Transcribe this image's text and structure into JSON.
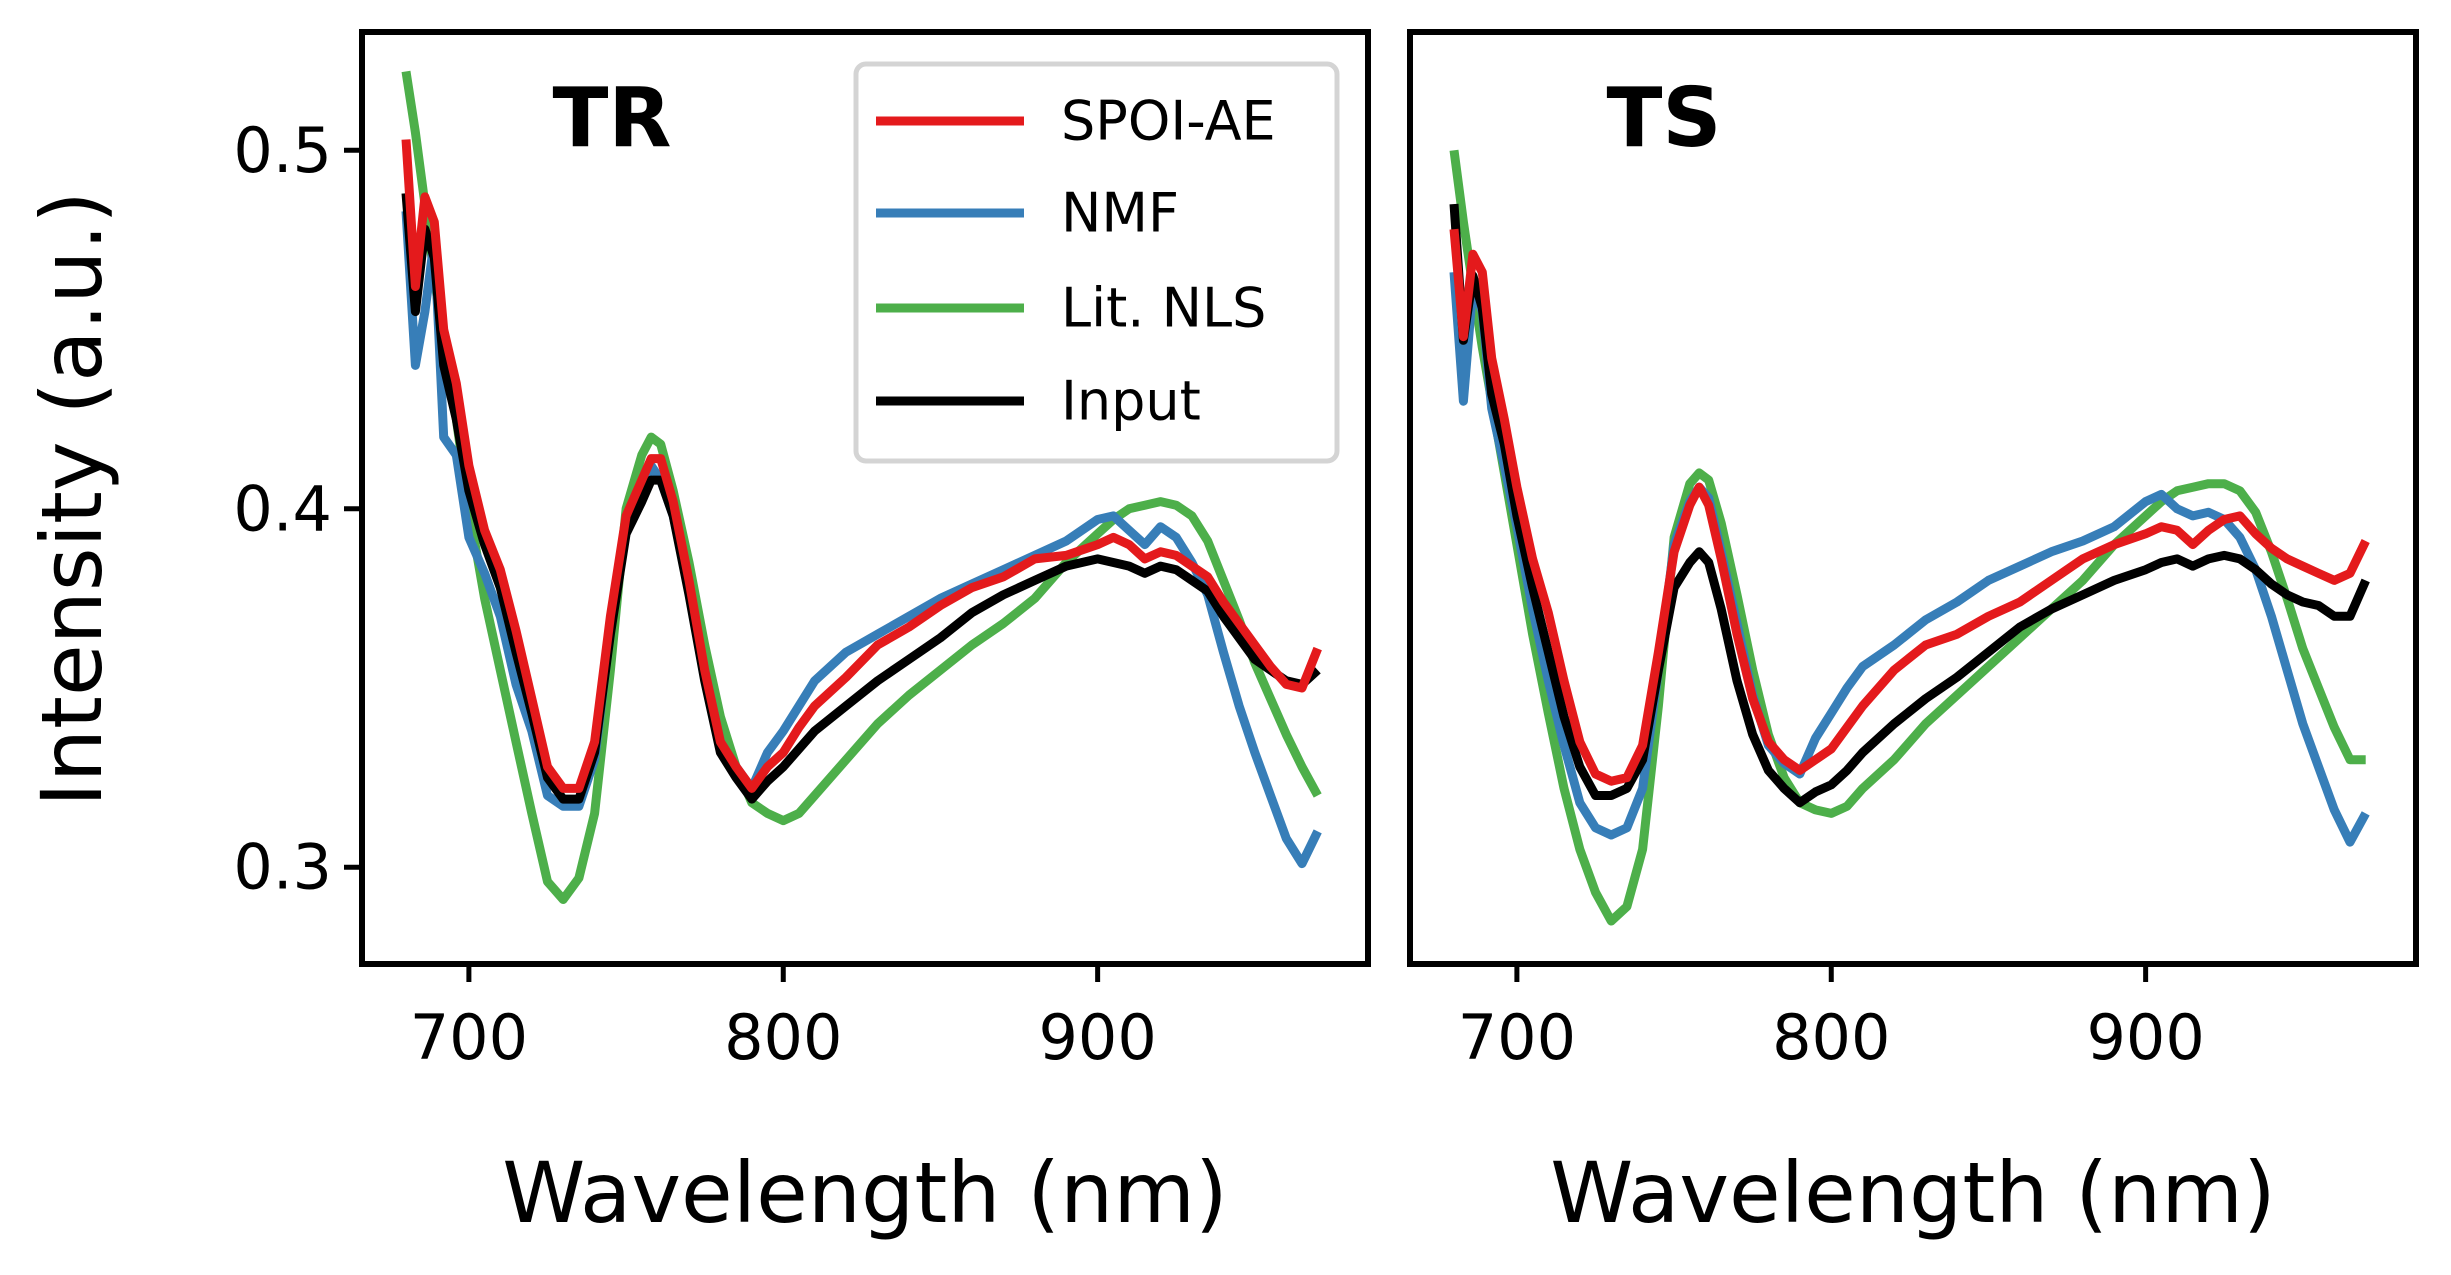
{
  "colors": {
    "SPOI-AE": "#e41a1c",
    "NMF": "#377eb8",
    "Lit. NLS": "#4daf4a",
    "Input": "#000000"
  },
  "ylabel": "Intensity (a.u.)",
  "legend_position": "top-right of TR panel",
  "chart_data": [
    {
      "type": "line",
      "title": "TR",
      "xlabel": "Wavelength (nm)",
      "ylabel": "Intensity (a.u.)",
      "xlim": [
        666,
        986
      ],
      "ylim": [
        0.273,
        0.533
      ],
      "xticks": [
        700,
        800,
        900
      ],
      "yticks": [
        0.3,
        0.4,
        0.5
      ],
      "x": [
        680,
        683,
        686,
        689,
        692,
        696,
        700,
        705,
        710,
        715,
        720,
        725,
        730,
        735,
        740,
        745,
        750,
        755,
        758,
        761,
        765,
        770,
        775,
        780,
        785,
        790,
        795,
        800,
        805,
        810,
        820,
        830,
        840,
        850,
        860,
        870,
        880,
        890,
        900,
        905,
        910,
        915,
        920,
        925,
        930,
        935,
        940,
        945,
        950,
        955,
        960,
        965,
        970
      ],
      "series": [
        {
          "name": "SPOI-AE",
          "values": [
            0.503,
            0.462,
            0.487,
            0.48,
            0.45,
            0.435,
            0.412,
            0.394,
            0.383,
            0.366,
            0.347,
            0.328,
            0.322,
            0.322,
            0.335,
            0.37,
            0.398,
            0.408,
            0.414,
            0.414,
            0.402,
            0.38,
            0.355,
            0.335,
            0.328,
            0.322,
            0.328,
            0.332,
            0.339,
            0.345,
            0.353,
            0.362,
            0.367,
            0.373,
            0.378,
            0.381,
            0.386,
            0.387,
            0.39,
            0.392,
            0.39,
            0.386,
            0.388,
            0.387,
            0.384,
            0.381,
            0.374,
            0.368,
            0.362,
            0.356,
            0.351,
            0.35,
            0.361
          ]
        },
        {
          "name": "NMF",
          "values": [
            0.483,
            0.44,
            0.455,
            0.475,
            0.42,
            0.415,
            0.392,
            0.382,
            0.37,
            0.351,
            0.338,
            0.32,
            0.317,
            0.317,
            0.33,
            0.366,
            0.395,
            0.405,
            0.412,
            0.408,
            0.398,
            0.378,
            0.355,
            0.335,
            0.328,
            0.322,
            0.332,
            0.338,
            0.345,
            0.352,
            0.36,
            0.365,
            0.37,
            0.375,
            0.379,
            0.383,
            0.387,
            0.391,
            0.397,
            0.398,
            0.394,
            0.39,
            0.395,
            0.392,
            0.385,
            0.376,
            0.36,
            0.345,
            0.332,
            0.32,
            0.308,
            0.301,
            0.31
          ]
        },
        {
          "name": "Lit. NLS",
          "values": [
            0.522,
            0.505,
            0.485,
            0.465,
            0.445,
            0.425,
            0.4,
            0.375,
            0.355,
            0.335,
            0.315,
            0.296,
            0.291,
            0.297,
            0.315,
            0.355,
            0.4,
            0.415,
            0.42,
            0.418,
            0.405,
            0.385,
            0.362,
            0.342,
            0.328,
            0.318,
            0.315,
            0.313,
            0.315,
            0.32,
            0.33,
            0.34,
            0.348,
            0.355,
            0.362,
            0.368,
            0.375,
            0.385,
            0.393,
            0.397,
            0.4,
            0.401,
            0.402,
            0.401,
            0.398,
            0.391,
            0.38,
            0.369,
            0.357,
            0.347,
            0.337,
            0.328,
            0.32
          ]
        },
        {
          "name": "Input",
          "values": [
            0.488,
            0.455,
            0.478,
            0.47,
            0.44,
            0.425,
            0.405,
            0.39,
            0.378,
            0.36,
            0.343,
            0.325,
            0.319,
            0.319,
            0.332,
            0.365,
            0.393,
            0.402,
            0.408,
            0.408,
            0.398,
            0.376,
            0.352,
            0.332,
            0.325,
            0.319,
            0.324,
            0.328,
            0.333,
            0.338,
            0.345,
            0.352,
            0.358,
            0.364,
            0.371,
            0.376,
            0.38,
            0.384,
            0.386,
            0.385,
            0.384,
            0.382,
            0.384,
            0.383,
            0.38,
            0.377,
            0.37,
            0.364,
            0.358,
            0.355,
            0.352,
            0.351,
            0.355
          ]
        }
      ]
    },
    {
      "type": "line",
      "title": "TS",
      "xlabel": "Wavelength (nm)",
      "xlim": [
        666,
        986
      ],
      "ylim": [
        0.273,
        0.533
      ],
      "xticks": [
        700,
        800,
        900
      ],
      "yticks": [
        0.3,
        0.4,
        0.5
      ],
      "x": [
        680,
        683,
        686,
        689,
        692,
        696,
        700,
        705,
        710,
        715,
        720,
        725,
        730,
        735,
        740,
        745,
        750,
        755,
        758,
        761,
        765,
        770,
        775,
        780,
        785,
        790,
        795,
        800,
        805,
        810,
        820,
        830,
        840,
        850,
        860,
        870,
        880,
        890,
        900,
        905,
        910,
        915,
        920,
        925,
        930,
        935,
        940,
        945,
        950,
        955,
        960,
        965,
        970
      ],
      "series": [
        {
          "name": "SPOI-AE",
          "values": [
            0.478,
            0.448,
            0.471,
            0.466,
            0.442,
            0.425,
            0.406,
            0.386,
            0.371,
            0.352,
            0.335,
            0.326,
            0.324,
            0.325,
            0.334,
            0.36,
            0.388,
            0.401,
            0.406,
            0.401,
            0.386,
            0.365,
            0.347,
            0.335,
            0.33,
            0.327,
            0.33,
            0.333,
            0.339,
            0.345,
            0.355,
            0.362,
            0.365,
            0.37,
            0.374,
            0.38,
            0.386,
            0.39,
            0.393,
            0.395,
            0.394,
            0.39,
            0.394,
            0.397,
            0.398,
            0.393,
            0.389,
            0.386,
            0.384,
            0.382,
            0.38,
            0.382,
            0.391
          ]
        },
        {
          "name": "NMF",
          "values": [
            0.466,
            0.43,
            0.462,
            0.455,
            0.428,
            0.412,
            0.395,
            0.372,
            0.352,
            0.334,
            0.318,
            0.311,
            0.309,
            0.311,
            0.322,
            0.355,
            0.39,
            0.402,
            0.406,
            0.403,
            0.388,
            0.368,
            0.348,
            0.334,
            0.329,
            0.326,
            0.336,
            0.343,
            0.35,
            0.356,
            0.362,
            0.369,
            0.374,
            0.38,
            0.384,
            0.388,
            0.391,
            0.395,
            0.402,
            0.404,
            0.4,
            0.398,
            0.399,
            0.397,
            0.392,
            0.383,
            0.37,
            0.355,
            0.34,
            0.328,
            0.316,
            0.307,
            0.315
          ]
        },
        {
          "name": "Lit. NLS",
          "values": [
            0.5,
            0.48,
            0.462,
            0.445,
            0.43,
            0.41,
            0.39,
            0.365,
            0.343,
            0.322,
            0.305,
            0.293,
            0.285,
            0.289,
            0.305,
            0.345,
            0.392,
            0.407,
            0.41,
            0.408,
            0.396,
            0.376,
            0.355,
            0.337,
            0.325,
            0.318,
            0.316,
            0.315,
            0.317,
            0.322,
            0.33,
            0.34,
            0.348,
            0.356,
            0.364,
            0.372,
            0.38,
            0.39,
            0.398,
            0.402,
            0.405,
            0.406,
            0.407,
            0.407,
            0.405,
            0.399,
            0.388,
            0.375,
            0.361,
            0.35,
            0.339,
            0.33,
            0.33
          ]
        },
        {
          "name": "Input",
          "values": [
            0.485,
            0.447,
            0.465,
            0.456,
            0.432,
            0.418,
            0.398,
            0.378,
            0.36,
            0.342,
            0.328,
            0.32,
            0.32,
            0.322,
            0.33,
            0.355,
            0.378,
            0.385,
            0.388,
            0.385,
            0.372,
            0.352,
            0.337,
            0.327,
            0.322,
            0.318,
            0.321,
            0.323,
            0.327,
            0.332,
            0.34,
            0.347,
            0.353,
            0.36,
            0.367,
            0.372,
            0.376,
            0.38,
            0.383,
            0.385,
            0.386,
            0.384,
            0.386,
            0.387,
            0.386,
            0.383,
            0.379,
            0.376,
            0.374,
            0.373,
            0.37,
            0.37,
            0.38
          ]
        }
      ]
    }
  ]
}
